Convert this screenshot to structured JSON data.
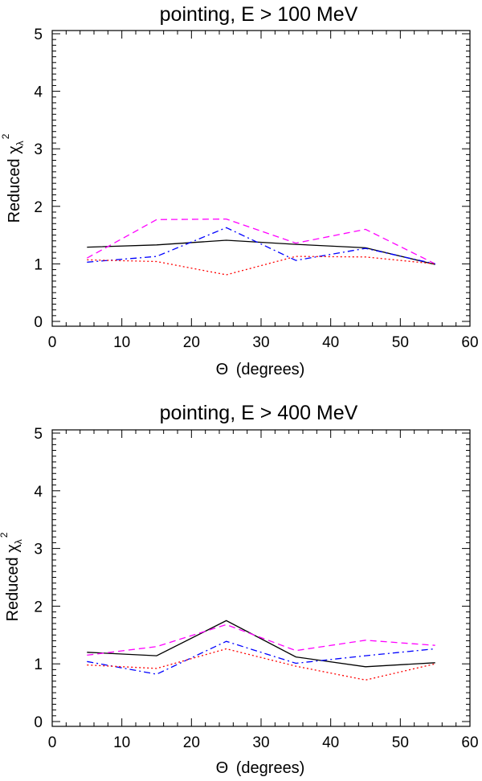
{
  "chart_data": [
    {
      "type": "line",
      "title": "pointing, E > 100 MeV",
      "xlabel": {
        "theta": "Θ",
        "rest": "(degrees)"
      },
      "ylabel": {
        "text": "Reduced ",
        "chi": "χ",
        "sub": "λ",
        "sup": "2"
      },
      "xlim": [
        0,
        60
      ],
      "ylim": [
        0,
        5
      ],
      "xticks": [
        0,
        10,
        20,
        30,
        40,
        50,
        60
      ],
      "yticks": [
        0,
        1,
        2,
        3,
        4,
        5
      ],
      "x": [
        5,
        15,
        25,
        35,
        45,
        55
      ],
      "series": [
        {
          "name": "solid",
          "color": "#000000",
          "dash": "none",
          "values": [
            1.29,
            1.33,
            1.41,
            1.34,
            1.28,
            0.99
          ]
        },
        {
          "name": "dashed",
          "color": "#ff00ff",
          "dash": "8 5",
          "values": [
            1.1,
            1.77,
            1.78,
            1.36,
            1.6,
            1.0
          ]
        },
        {
          "name": "dash-dot",
          "color": "#0000ff",
          "dash": "8 4 2 4",
          "values": [
            1.03,
            1.13,
            1.63,
            1.06,
            1.27,
            1.0
          ]
        },
        {
          "name": "dotted",
          "color": "#ff0000",
          "dash": "2 3",
          "values": [
            1.07,
            1.04,
            0.81,
            1.13,
            1.12,
            1.0
          ]
        }
      ]
    },
    {
      "type": "line",
      "title": "pointing, E > 400 MeV",
      "xlabel": {
        "theta": "Θ",
        "rest": "(degrees)"
      },
      "ylabel": {
        "text": "Reduced ",
        "chi": "χ",
        "sub": "λ",
        "sup": "2"
      },
      "xlim": [
        0,
        60
      ],
      "ylim": [
        0,
        5
      ],
      "xticks": [
        0,
        10,
        20,
        30,
        40,
        50,
        60
      ],
      "yticks": [
        0,
        1,
        2,
        3,
        4,
        5
      ],
      "x": [
        5,
        15,
        25,
        35,
        45,
        55
      ],
      "series": [
        {
          "name": "solid",
          "color": "#000000",
          "dash": "none",
          "values": [
            1.2,
            1.14,
            1.75,
            1.12,
            0.95,
            1.02
          ]
        },
        {
          "name": "dashed",
          "color": "#ff00ff",
          "dash": "8 5",
          "values": [
            1.15,
            1.3,
            1.68,
            1.23,
            1.41,
            1.32
          ]
        },
        {
          "name": "dash-dot",
          "color": "#0000ff",
          "dash": "8 4 2 4",
          "values": [
            1.04,
            0.82,
            1.39,
            1.01,
            1.14,
            1.26
          ]
        },
        {
          "name": "dotted",
          "color": "#ff0000",
          "dash": "2 3",
          "values": [
            0.98,
            0.92,
            1.26,
            0.96,
            0.72,
            1.0
          ]
        }
      ]
    }
  ]
}
